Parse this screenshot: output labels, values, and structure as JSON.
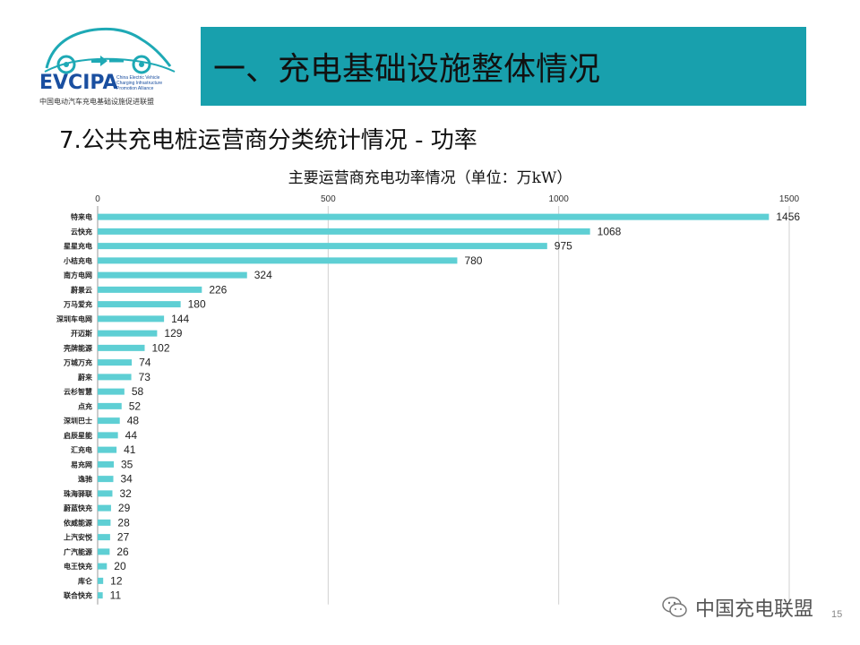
{
  "logo": {
    "name": "EVCIPA",
    "sub_lines": [
      "China Electric Vehicle",
      "Charging Infrastructure",
      "Promotion Alliance"
    ],
    "cn_name": "中国电动汽车充电基础设施促进联盟"
  },
  "header": {
    "title": "一、充电基础设施整体情况"
  },
  "section": {
    "subtitle": "7.公共充电桩运营商分类统计情况 - 功率"
  },
  "watermark": {
    "text": "中国充电联盟"
  },
  "page": {
    "number": "15"
  },
  "colors": {
    "banner": "#18a0ad",
    "bar": "#5ecfd4",
    "grid": "#d0d0d0"
  },
  "chart_data": {
    "type": "bar",
    "orientation": "horizontal",
    "title": "主要运营商充电功率情况（单位：万kW）",
    "xlim": [
      0,
      1500
    ],
    "xticks": [
      0,
      500,
      1000,
      1500
    ],
    "grid": true,
    "legend": "none",
    "categories": [
      "特来电",
      "云快充",
      "星星充电",
      "小桔充电",
      "南方电网",
      "蔚景云",
      "万马爱充",
      "深圳车电网",
      "开迈斯",
      "壳牌能源",
      "万城万充",
      "蔚来",
      "云杉智慧",
      "点充",
      "深圳巴士",
      "启辰星能",
      "汇充电",
      "易充网",
      "逸驰",
      "珠海驿联",
      "蔚蓝快充",
      "依威能源",
      "上汽安悦",
      "广汽能源",
      "电王快充",
      "库仑",
      "联合快充"
    ],
    "values": [
      1456,
      1068,
      975,
      780,
      324,
      226,
      180,
      144,
      129,
      102,
      74,
      73,
      58,
      52,
      48,
      44,
      41,
      35,
      34,
      32,
      29,
      28,
      27,
      26,
      20,
      12,
      11
    ]
  }
}
